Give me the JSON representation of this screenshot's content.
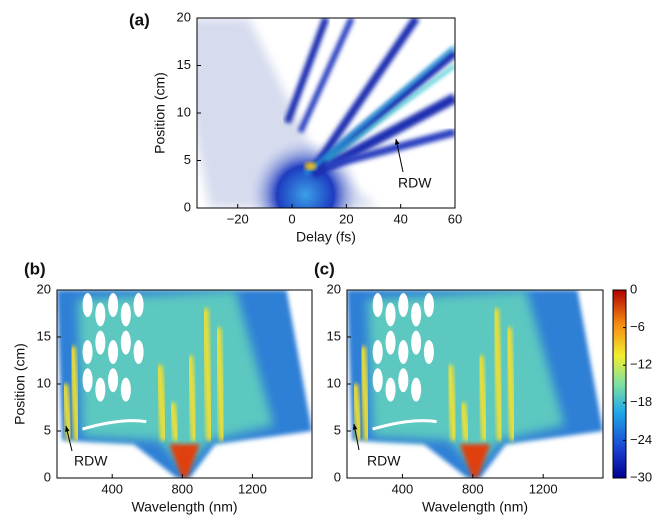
{
  "chart_data": [
    {
      "type": "heatmap",
      "panel_label": "(a)",
      "xlabel": "Delay (fs)",
      "ylabel": "Position (cm)",
      "xlim": [
        -35,
        60
      ],
      "ylim": [
        0,
        20
      ],
      "xticks": [
        {
          "value": -20,
          "label": "−20"
        },
        0,
        20,
        40,
        60
      ],
      "yticks": [
        0,
        5,
        10,
        15,
        20
      ],
      "annotation": "RDW"
    },
    {
      "type": "heatmap",
      "panel_label": "(b)",
      "xlabel": "Wavelength (nm)",
      "ylabel": "Position (cm)",
      "xlim": [
        85,
        1540
      ],
      "ylim": [
        0,
        20
      ],
      "xticks": [
        400,
        800,
        1200
      ],
      "yticks": [
        0,
        5,
        10,
        15,
        20
      ],
      "annotation": "RDW"
    },
    {
      "type": "heatmap",
      "panel_label": "(c)",
      "xlabel": "Wavelength (nm)",
      "xlim": [
        85,
        1540
      ],
      "ylim": [
        0,
        20
      ],
      "xticks": [
        400,
        800,
        1200
      ],
      "yticks": [
        0,
        5,
        10,
        15,
        20
      ],
      "annotation": "RDW",
      "colorbar": {
        "lim": [
          -30,
          0
        ],
        "ticks": [
          0,
          {
            "value": -6,
            "label": "−6"
          },
          {
            "value": -12,
            "label": "−12"
          },
          {
            "value": -18,
            "label": "−18"
          },
          {
            "value": -24,
            "label": "−24"
          },
          {
            "value": -30,
            "label": "−30"
          }
        ]
      }
    }
  ]
}
